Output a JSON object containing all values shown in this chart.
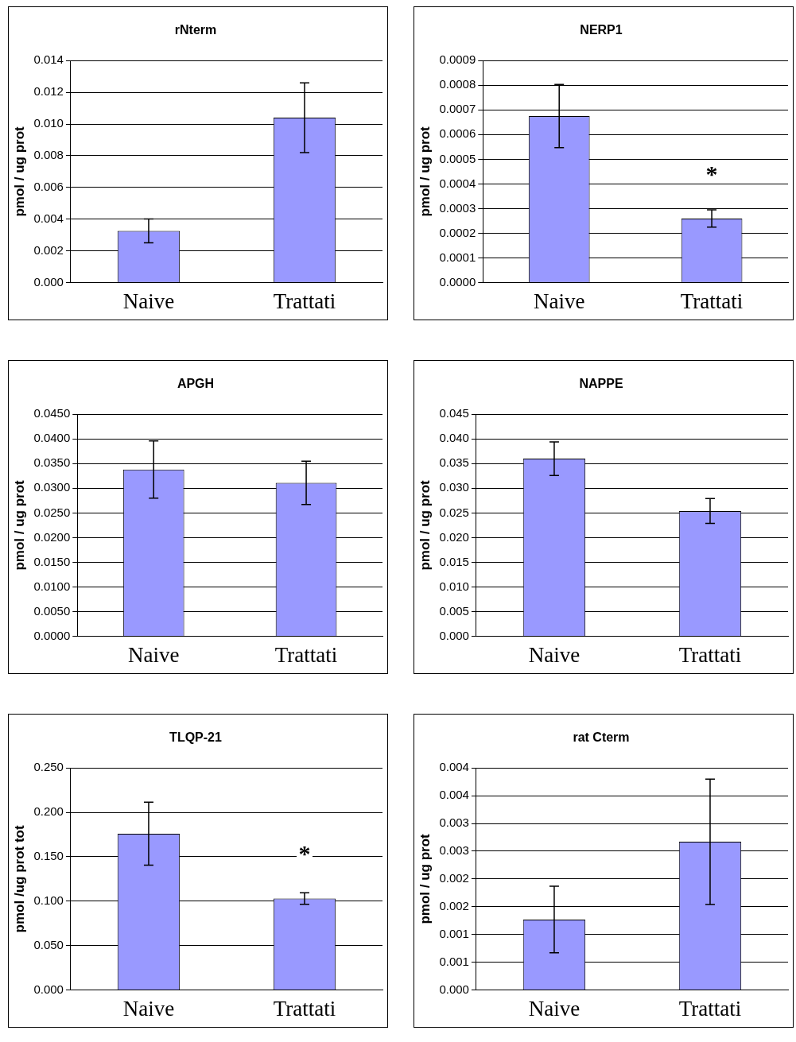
{
  "chart_data": [
    {
      "type": "bar",
      "title": "rNterm",
      "ylabel": "pmol / ug prot",
      "categories": [
        "Naive",
        "Trattati"
      ],
      "values": [
        0.00326,
        0.0104
      ],
      "errors": [
        0.00075,
        0.0022
      ],
      "color": "#9999ff",
      "ylim": [
        0,
        0.014
      ],
      "yticks": [
        {
          "value": 0,
          "label": "0.000"
        },
        {
          "value": 0.002,
          "label": "0.002"
        },
        {
          "value": 0.004,
          "label": "0.004"
        },
        {
          "value": 0.006,
          "label": "0.006"
        },
        {
          "value": 0.008,
          "label": "0.008"
        },
        {
          "value": 0.01,
          "label": "0.010"
        },
        {
          "value": 0.012,
          "label": "0.012"
        },
        {
          "value": 0.014,
          "label": "0.014"
        }
      ],
      "grid": "y"
    },
    {
      "type": "bar",
      "title": "NERP1",
      "ylabel": "pmol / ug prot",
      "categories": [
        "Naive",
        "Trattati"
      ],
      "values": [
        0.000675,
        0.00026
      ],
      "errors": [
        0.000128,
        3.5e-05
      ],
      "color": "#9999ff",
      "ylim": [
        0,
        0.0009
      ],
      "yticks": [
        {
          "value": 0,
          "label": "0.0000"
        },
        {
          "value": 0.0001,
          "label": "0.0001"
        },
        {
          "value": 0.0002,
          "label": "0.0002"
        },
        {
          "value": 0.0003,
          "label": "0.0003"
        },
        {
          "value": 0.0004,
          "label": "0.0004"
        },
        {
          "value": 0.0005,
          "label": "0.0005"
        },
        {
          "value": 0.0006,
          "label": "0.0006"
        },
        {
          "value": 0.0007,
          "label": "0.0007"
        },
        {
          "value": 0.0008,
          "label": "0.0008"
        },
        {
          "value": 0.0009,
          "label": "0.0009"
        }
      ],
      "grid": "y",
      "annotations": [
        {
          "text": "*",
          "x": "Trattati",
          "y": 0.00026
        }
      ]
    },
    {
      "type": "bar",
      "title": "APGH",
      "ylabel": "pmol / ug prot",
      "categories": [
        "Naive",
        "Trattati"
      ],
      "values": [
        0.0338,
        0.0311
      ],
      "errors": [
        0.0058,
        0.0044
      ],
      "color": "#9999ff",
      "ylim": [
        0,
        0.045
      ],
      "yticks": [
        {
          "value": 0,
          "label": "0.0000"
        },
        {
          "value": 0.005,
          "label": "0.0050"
        },
        {
          "value": 0.01,
          "label": "0.0100"
        },
        {
          "value": 0.015,
          "label": "0.0150"
        },
        {
          "value": 0.02,
          "label": "0.0200"
        },
        {
          "value": 0.025,
          "label": "0.0250"
        },
        {
          "value": 0.03,
          "label": "0.0300"
        },
        {
          "value": 0.035,
          "label": "0.0350"
        },
        {
          "value": 0.04,
          "label": "0.0400"
        },
        {
          "value": 0.045,
          "label": "0.0450"
        }
      ],
      "grid": "y"
    },
    {
      "type": "bar",
      "title": "NAPPE",
      "ylabel": "pmol / ug prot",
      "categories": [
        "Naive",
        "Trattati"
      ],
      "values": [
        0.036,
        0.0254
      ],
      "errors": [
        0.0034,
        0.0025
      ],
      "color": "#9999ff",
      "ylim": [
        0,
        0.045
      ],
      "yticks": [
        {
          "value": 0,
          "label": "0.000"
        },
        {
          "value": 0.005,
          "label": "0.005"
        },
        {
          "value": 0.01,
          "label": "0.010"
        },
        {
          "value": 0.015,
          "label": "0.015"
        },
        {
          "value": 0.02,
          "label": "0.020"
        },
        {
          "value": 0.025,
          "label": "0.025"
        },
        {
          "value": 0.03,
          "label": "0.030"
        },
        {
          "value": 0.035,
          "label": "0.035"
        },
        {
          "value": 0.04,
          "label": "0.040"
        },
        {
          "value": 0.045,
          "label": "0.045"
        }
      ],
      "grid": "y"
    },
    {
      "type": "bar",
      "title": "TLQP-21",
      "ylabel": "pmol /ug prot tot",
      "categories": [
        "Naive",
        "Trattati"
      ],
      "values": [
        0.176,
        0.103
      ],
      "errors": [
        0.0355,
        0.0065
      ],
      "color": "#9999ff",
      "ylim": [
        0,
        0.25
      ],
      "yticks": [
        {
          "value": 0,
          "label": "0.000"
        },
        {
          "value": 0.05,
          "label": "0.050"
        },
        {
          "value": 0.1,
          "label": "0.100"
        },
        {
          "value": 0.15,
          "label": "0.150"
        },
        {
          "value": 0.2,
          "label": "0.200"
        },
        {
          "value": 0.25,
          "label": "0.250"
        }
      ],
      "grid": "y",
      "annotations": [
        {
          "text": "*",
          "x": "Trattati",
          "y": 0.103
        }
      ]
    },
    {
      "type": "bar",
      "title": "rat Cterm",
      "ylabel": "pmol / ug prot",
      "categories": [
        "Naive",
        "Trattati"
      ],
      "values": [
        0.00127,
        0.00267
      ],
      "errors": [
        0.0006,
        0.00113
      ],
      "color": "#9999ff",
      "ylim": [
        0,
        0.004
      ],
      "yticks": [
        {
          "value": 0,
          "label": "0.000"
        },
        {
          "value": 0.0005,
          "label": "0.001"
        },
        {
          "value": 0.001,
          "label": "0.001"
        },
        {
          "value": 0.0015,
          "label": "0.002"
        },
        {
          "value": 0.002,
          "label": "0.002"
        },
        {
          "value": 0.0025,
          "label": "0.003"
        },
        {
          "value": 0.003,
          "label": "0.003"
        },
        {
          "value": 0.0035,
          "label": "0.004"
        },
        {
          "value": 0.004,
          "label": "0.004"
        }
      ],
      "grid": "y"
    }
  ]
}
